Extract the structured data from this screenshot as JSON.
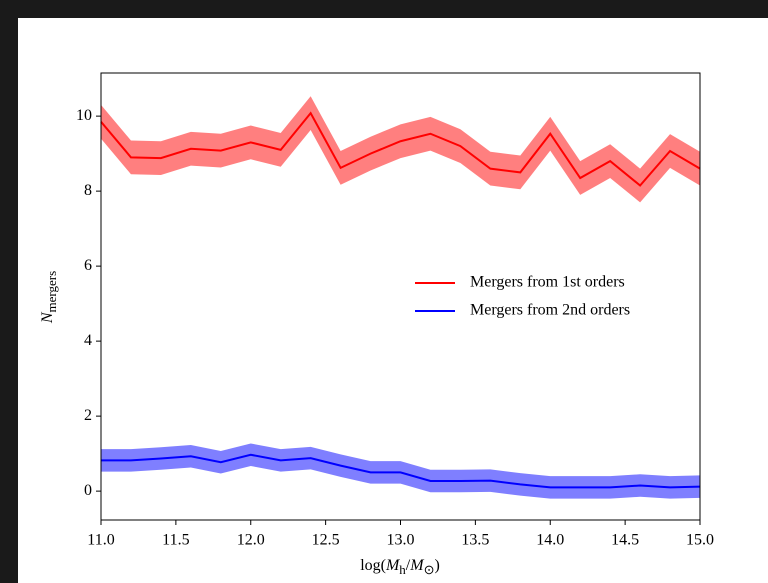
{
  "chart_data": {
    "type": "line",
    "x": [
      11.0,
      11.2,
      11.4,
      11.6,
      11.8,
      12.0,
      12.2,
      12.4,
      12.6,
      12.8,
      13.0,
      13.2,
      13.4,
      13.6,
      13.8,
      14.0,
      14.2,
      14.4,
      14.6,
      14.8,
      15.0
    ],
    "series": [
      {
        "name": "Mergers from 1st orders",
        "color": "#ff0000",
        "band_color": "#ff7f7f",
        "values": [
          9.85,
          8.9,
          8.88,
          9.13,
          9.08,
          9.3,
          9.1,
          10.08,
          8.62,
          9.0,
          9.33,
          9.53,
          9.2,
          8.6,
          8.5,
          9.53,
          8.35,
          8.8,
          8.15,
          9.07,
          8.6
        ],
        "lower": [
          9.4,
          8.45,
          8.43,
          8.68,
          8.63,
          8.85,
          8.65,
          9.63,
          8.17,
          8.55,
          8.88,
          9.08,
          8.75,
          8.15,
          8.05,
          9.08,
          7.9,
          8.35,
          7.7,
          8.62,
          8.15
        ],
        "upper": [
          10.3,
          9.35,
          9.33,
          9.58,
          9.53,
          9.75,
          9.55,
          10.53,
          9.07,
          9.45,
          9.78,
          9.98,
          9.65,
          9.05,
          8.95,
          9.98,
          8.8,
          9.25,
          8.6,
          9.52,
          9.05
        ]
      },
      {
        "name": "Mergers from 2nd orders",
        "color": "#0000ff",
        "band_color": "#7f7fff",
        "values": [
          0.82,
          0.82,
          0.87,
          0.93,
          0.77,
          0.97,
          0.82,
          0.88,
          0.68,
          0.5,
          0.5,
          0.27,
          0.27,
          0.28,
          0.18,
          0.1,
          0.1,
          0.1,
          0.15,
          0.1,
          0.12
        ],
        "lower": [
          0.52,
          0.52,
          0.57,
          0.63,
          0.47,
          0.67,
          0.52,
          0.58,
          0.38,
          0.2,
          0.2,
          -0.03,
          -0.03,
          -0.02,
          -0.12,
          -0.2,
          -0.2,
          -0.2,
          -0.15,
          -0.2,
          -0.18
        ],
        "upper": [
          1.12,
          1.12,
          1.17,
          1.23,
          1.07,
          1.27,
          1.12,
          1.18,
          0.98,
          0.8,
          0.8,
          0.57,
          0.57,
          0.58,
          0.48,
          0.4,
          0.4,
          0.4,
          0.45,
          0.4,
          0.42
        ]
      }
    ],
    "xlim": [
      11.0,
      15.0
    ],
    "xticks": [
      {
        "value": 11.0,
        "label": "11.0"
      },
      {
        "value": 11.5,
        "label": "11.5"
      },
      {
        "value": 12.0,
        "label": "12.0"
      },
      {
        "value": 12.5,
        "label": "12.5"
      },
      {
        "value": 13.0,
        "label": "13.0"
      },
      {
        "value": 13.5,
        "label": "13.5"
      },
      {
        "value": 14.0,
        "label": "14.0"
      },
      {
        "value": 14.5,
        "label": "14.5"
      },
      {
        "value": 15.0,
        "label": "15.0"
      }
    ],
    "ylim": [
      -0.77,
      11.15
    ],
    "yticks": [
      0,
      2,
      4,
      6,
      8,
      10
    ],
    "xlabel": [
      "log(",
      "M",
      "h",
      "/",
      "M",
      "⊙",
      ")"
    ],
    "ylabel": [
      "N",
      "mergers"
    ],
    "legend": "center right",
    "grid": false
  }
}
